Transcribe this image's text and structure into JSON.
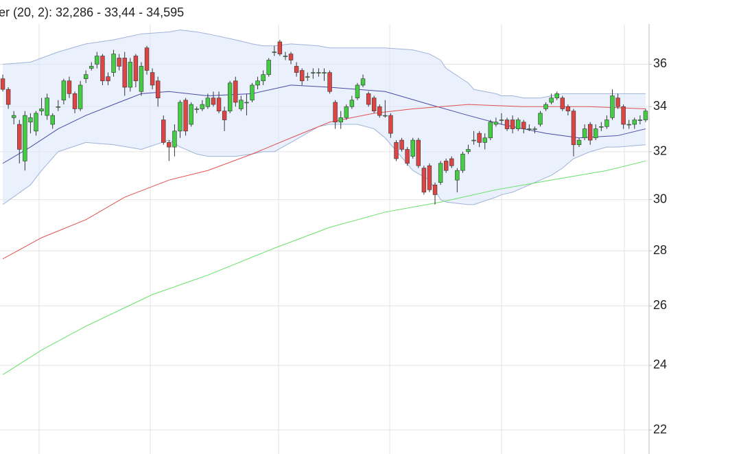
{
  "chart_data": {
    "type": "candlestick",
    "title": "er (20, 2): 32,286 - 33,44 - 34,595",
    "ylim": [
      21.3,
      38
    ],
    "yticks": [
      22,
      24,
      26,
      28,
      30,
      32,
      34,
      36
    ],
    "log_scale": true,
    "grid": true,
    "up_color": "#44cc44",
    "down_color": "#dd4444",
    "open": [
      35.3,
      34.8,
      33.5,
      33.2,
      31.6,
      33.3,
      32.9,
      33.8,
      33.6,
      33.2,
      34.0,
      34.3,
      35.2,
      34.6,
      33.9,
      35.3,
      35.8,
      36.0,
      36.4,
      35.4,
      35.6,
      36.3,
      36.3,
      34.9,
      36.4,
      34.7,
      36.8,
      35.6,
      35.2,
      33.4,
      32.4,
      32.2,
      32.9,
      34.3,
      33.2,
      33.9,
      33.9,
      34.0,
      34.4,
      34.4,
      33.8,
      33.8,
      35.2,
      33.9,
      34.2,
      34.3,
      35.0,
      35.2,
      35.5,
      36.6,
      37.1,
      36.4,
      36.5,
      35.9,
      35.7,
      35.4,
      35.6,
      35.6,
      35.6,
      35.6,
      34.2,
      33.3,
      33.5,
      34.0,
      34.4,
      35.0,
      34.6,
      34.4,
      34.0,
      33.6,
      33.6,
      32.4,
      32.5,
      32.1,
      31.8,
      32.5,
      31.3,
      31.4,
      30.6,
      30.7,
      31.6,
      31.7,
      30.8,
      31.2,
      32.0,
      32.5,
      32.8,
      32.4,
      32.6,
      33.2,
      33.4,
      33.4,
      33.4,
      33.0,
      33.3,
      33.0,
      33.0,
      33.2,
      33.9,
      34.2,
      34.4,
      34.4,
      34.0,
      33.8,
      32.3,
      32.6,
      33.2,
      32.6,
      33.1,
      33.1,
      33.5,
      34.4,
      34.0,
      33.2,
      33.2,
      33.4,
      33.4
    ],
    "high": [
      35.5,
      34.9,
      33.8,
      33.4,
      33.8,
      33.7,
      33.8,
      34.4,
      34.6,
      33.7,
      34.3,
      35.3,
      35.4,
      34.7,
      35.2,
      35.7,
      36.1,
      36.6,
      36.5,
      35.6,
      36.7,
      36.5,
      36.6,
      36.3,
      36.5,
      36.1,
      36.9,
      35.8,
      35.4,
      33.6,
      32.5,
      33.2,
      34.3,
      34.4,
      34.2,
      34.0,
      34.3,
      34.6,
      34.7,
      34.7,
      34.0,
      35.2,
      35.4,
      34.5,
      34.6,
      35.1,
      35.4,
      35.7,
      36.3,
      36.9,
      37.2,
      36.6,
      36.6,
      36.1,
      35.8,
      35.6,
      35.8,
      35.8,
      35.8,
      35.7,
      34.3,
      33.8,
      34.1,
      34.5,
      35.1,
      35.5,
      34.7,
      34.5,
      34.1,
      34.3,
      33.7,
      32.5,
      32.6,
      32.2,
      32.6,
      32.6,
      31.4,
      31.5,
      30.7,
      31.6,
      31.7,
      31.8,
      31.3,
      32.0,
      32.3,
      32.9,
      32.9,
      32.8,
      33.4,
      33.5,
      33.7,
      33.5,
      33.6,
      33.5,
      33.4,
      33.2,
      33.1,
      33.8,
      34.2,
      34.6,
      34.7,
      34.5,
      34.1,
      33.9,
      32.6,
      33.2,
      33.3,
      33.2,
      33.3,
      33.6,
      34.8,
      34.6,
      34.1,
      33.4,
      33.5,
      33.6,
      33.9
    ],
    "low": [
      34.7,
      33.9,
      33.2,
      31.5,
      31.2,
      32.8,
      32.7,
      33.6,
      33.4,
      33.0,
      33.8,
      34.1,
      34.4,
      33.7,
      33.8,
      35.1,
      35.7,
      35.8,
      35.0,
      35.0,
      35.4,
      35.7,
      34.5,
      34.7,
      34.9,
      34.5,
      35.5,
      34.8,
      34.0,
      32.3,
      31.6,
      31.8,
      32.6,
      32.7,
      33.1,
      33.7,
      33.8,
      33.9,
      34.0,
      33.7,
      32.9,
      33.7,
      34.0,
      33.8,
      33.6,
      34.2,
      34.8,
      35.0,
      35.4,
      36.4,
      36.4,
      36.2,
      36.0,
      35.4,
      35.0,
      35.2,
      35.3,
      35.4,
      35.2,
      34.6,
      33.0,
      33.0,
      33.4,
      33.9,
      34.3,
      34.9,
      34.0,
      33.7,
      33.5,
      33.5,
      32.6,
      31.6,
      32.0,
      31.4,
      31.7,
      31.3,
      30.2,
      30.3,
      29.8,
      30.6,
      31.1,
      31.3,
      30.3,
      31.1,
      31.9,
      32.3,
      32.2,
      32.1,
      32.5,
      33.1,
      33.2,
      32.9,
      32.8,
      32.9,
      32.8,
      32.9,
      32.8,
      33.1,
      33.8,
      34.1,
      34.3,
      33.8,
      33.6,
      31.8,
      32.2,
      32.5,
      32.3,
      32.5,
      32.9,
      33.0,
      33.4,
      33.9,
      33.0,
      33.0,
      33.0,
      33.2,
      33.3
    ],
    "close": [
      34.8,
      34.1,
      33.6,
      32.1,
      33.6,
      33.5,
      33.7,
      33.9,
      34.4,
      33.6,
      34.0,
      35.2,
      34.6,
      33.9,
      35.0,
      35.5,
      35.9,
      36.4,
      35.2,
      35.2,
      36.5,
      35.9,
      34.9,
      36.1,
      35.2,
      35.9,
      35.7,
      35.0,
      34.4,
      32.4,
      32.2,
      32.9,
      34.2,
      32.9,
      34.1,
      33.9,
      34.1,
      34.4,
      34.1,
      33.8,
      33.4,
      35.1,
      34.2,
      34.3,
      34.2,
      35.0,
      35.2,
      35.5,
      36.2,
      36.6,
      36.5,
      36.4,
      36.2,
      35.6,
      35.2,
      35.4,
      35.6,
      35.6,
      35.6,
      34.7,
      33.3,
      33.5,
      34.0,
      34.3,
      35.0,
      35.3,
      34.1,
      33.8,
      33.6,
      33.6,
      32.8,
      31.7,
      32.1,
      31.5,
      32.5,
      31.4,
      30.3,
      30.4,
      30.2,
      31.5,
      31.2,
      31.4,
      31.2,
      31.9,
      32.1,
      32.5,
      32.4,
      32.6,
      33.3,
      33.3,
      33.4,
      33.0,
      33.0,
      33.4,
      33.0,
      33.0,
      33.0,
      33.7,
      34.1,
      34.4,
      34.6,
      33.9,
      33.8,
      32.3,
      32.5,
      33.0,
      32.5,
      33.0,
      33.1,
      33.4,
      34.5,
      34.0,
      33.2,
      33.2,
      33.4,
      33.4,
      33.8
    ],
    "band_color": "#9fb3d9",
    "band_fill": "#dce6fa",
    "bands": {
      "x": [
        0,
        5,
        7,
        10,
        15,
        20,
        25,
        30,
        32,
        35,
        37,
        42,
        45,
        47,
        49,
        52,
        57,
        59,
        64,
        67,
        69,
        74,
        77,
        79,
        80,
        84,
        85,
        89,
        90,
        92,
        94,
        97,
        99,
        101,
        103,
        104,
        106,
        109,
        111,
        116
      ],
      "upper": [
        36.0,
        36.1,
        36.3,
        36.6,
        37.0,
        37.2,
        37.5,
        37.6,
        37.7,
        37.6,
        37.5,
        37.2,
        37.0,
        36.9,
        36.9,
        37.0,
        36.9,
        36.8,
        36.8,
        36.8,
        36.8,
        36.7,
        36.5,
        36.2,
        35.8,
        35.1,
        34.8,
        34.6,
        34.5,
        34.5,
        34.4,
        34.4,
        34.5,
        34.6,
        34.6,
        34.6,
        34.6,
        34.6,
        34.6,
        34.6
      ],
      "lower": [
        29.8,
        30.6,
        31.2,
        32.0,
        32.4,
        32.3,
        32.1,
        32.5,
        32.2,
        31.9,
        31.8,
        31.8,
        31.9,
        32.0,
        32.0,
        32.4,
        33.1,
        33.2,
        33.2,
        33.0,
        32.6,
        31.2,
        30.8,
        30.0,
        29.9,
        29.8,
        29.8,
        30.1,
        30.2,
        30.3,
        30.5,
        30.8,
        31.0,
        31.3,
        31.7,
        31.8,
        32.0,
        32.2,
        32.2,
        32.3
      ]
    },
    "lines": [
      {
        "color": "#4a4aa8",
        "x": [
          0,
          5,
          10,
          15,
          20,
          25,
          30,
          37,
          45,
          52,
          59,
          69,
          77,
          84,
          90,
          98,
          104,
          111,
          116
        ],
        "values": [
          31.5,
          32.2,
          33.0,
          33.6,
          34.1,
          34.6,
          34.7,
          34.5,
          34.6,
          35.0,
          34.9,
          34.7,
          34.1,
          33.6,
          33.2,
          32.8,
          32.6,
          32.7,
          33.0
        ]
      },
      {
        "color": "#e05050",
        "x": [
          0,
          7,
          15,
          22,
          30,
          37,
          45,
          52,
          59,
          67,
          74,
          84,
          94,
          106,
          116
        ],
        "values": [
          27.7,
          28.5,
          29.2,
          30.1,
          30.8,
          31.2,
          31.9,
          32.6,
          33.3,
          33.7,
          33.9,
          34.1,
          34.0,
          34.0,
          33.9
        ]
      },
      {
        "color": "#66e066",
        "x": [
          0,
          7,
          15,
          27,
          37,
          49,
          59,
          69,
          79,
          89,
          99,
          109,
          116
        ],
        "values": [
          23.7,
          24.5,
          25.3,
          26.4,
          27.1,
          28.1,
          28.9,
          29.5,
          29.9,
          30.4,
          30.8,
          31.2,
          31.6
        ]
      }
    ]
  }
}
